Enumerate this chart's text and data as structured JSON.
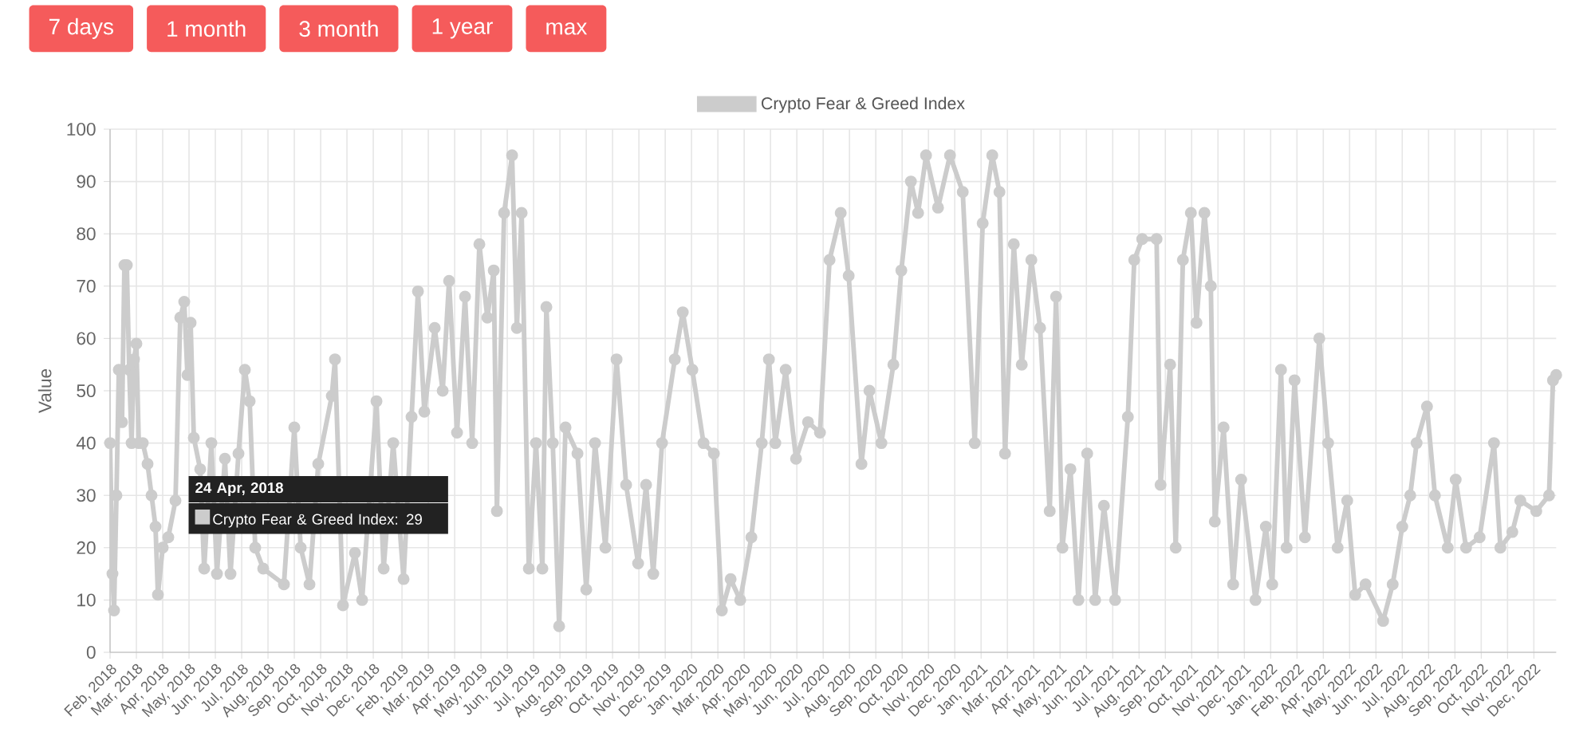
{
  "chart_data": {
    "type": "line",
    "ylabel": "Value",
    "annotations": [
      "7 days",
      "1 month",
      "3 month",
      "1 year",
      "max",
      {
        "text": "24 Apr, 2018",
        "x": "2018-04-24",
        "y": 29
      },
      {
        "text": "Crypto Fear & Greed Index: 29",
        "x": "2018-04-24",
        "y": 29
      }
    ],
    "x": [
      "2018-02-01",
      "2018-02-04",
      "2018-02-06",
      "2018-02-09",
      "2018-02-12",
      "2018-02-16",
      "2018-02-19",
      "2018-02-22",
      "2018-02-25",
      "2018-02-28",
      "2018-03-03",
      "2018-03-06",
      "2018-03-09",
      "2018-03-14",
      "2018-03-20",
      "2018-03-25",
      "2018-03-30",
      "2018-04-02",
      "2018-04-08",
      "2018-04-15",
      "2018-04-24",
      "2018-04-30",
      "2018-05-05",
      "2018-05-09",
      "2018-05-13",
      "2018-05-17",
      "2018-05-25",
      "2018-05-30",
      "2018-06-08",
      "2018-06-15",
      "2018-06-25",
      "2018-07-02",
      "2018-07-12",
      "2018-07-20",
      "2018-07-26",
      "2018-08-02",
      "2018-08-12",
      "2018-08-25",
      "2018-09-07",
      "2018-09-20",
      "2018-09-28",
      "2018-10-09",
      "2018-10-20",
      "2018-11-06",
      "2018-11-10",
      "2018-11-20",
      "2018-12-05",
      "2018-12-14",
      "2018-12-22",
      "2019-01-01",
      "2019-01-10",
      "2019-01-22",
      "2019-02-04",
      "2019-02-14",
      "2019-02-22",
      "2019-03-02",
      "2019-03-15",
      "2019-03-25",
      "2019-04-02",
      "2019-04-12",
      "2019-04-22",
      "2019-05-01",
      "2019-05-10",
      "2019-05-20",
      "2019-05-28",
      "2019-06-01",
      "2019-06-10",
      "2019-06-20",
      "2019-06-26",
      "2019-07-02",
      "2019-07-11",
      "2019-07-20",
      "2019-07-28",
      "2019-08-02",
      "2019-08-10",
      "2019-08-18",
      "2019-08-26",
      "2019-09-10",
      "2019-09-21",
      "2019-10-02",
      "2019-10-15",
      "2019-10-29",
      "2019-11-10",
      "2019-11-25",
      "2019-12-05",
      "2019-12-14",
      "2019-12-25",
      "2020-01-10",
      "2020-01-20",
      "2020-02-01",
      "2020-02-15",
      "2020-02-28",
      "2020-03-09",
      "2020-03-20",
      "2020-04-01",
      "2020-04-15",
      "2020-04-28",
      "2020-05-07",
      "2020-05-15",
      "2020-05-28",
      "2020-06-10",
      "2020-06-25",
      "2020-07-10",
      "2020-07-22",
      "2020-08-05",
      "2020-08-15",
      "2020-08-31",
      "2020-09-10",
      "2020-09-25",
      "2020-10-10",
      "2020-10-20",
      "2020-11-01",
      "2020-11-10",
      "2020-11-20",
      "2020-12-05",
      "2020-12-20",
      "2021-01-05",
      "2021-01-20",
      "2021-01-30",
      "2021-02-11",
      "2021-02-20",
      "2021-02-27",
      "2021-03-10",
      "2021-03-20",
      "2021-04-01",
      "2021-04-12",
      "2021-04-24",
      "2021-05-02",
      "2021-05-10",
      "2021-05-20",
      "2021-05-30",
      "2021-06-10",
      "2021-06-20",
      "2021-07-01",
      "2021-07-15",
      "2021-07-31",
      "2021-08-08",
      "2021-08-18",
      "2021-09-05",
      "2021-09-10",
      "2021-09-22",
      "2021-09-29",
      "2021-10-08",
      "2021-10-18",
      "2021-10-25",
      "2021-11-04",
      "2021-11-12",
      "2021-11-17",
      "2021-11-28",
      "2021-12-10",
      "2021-12-20",
      "2022-01-07",
      "2022-01-20",
      "2022-01-28",
      "2022-02-08",
      "2022-02-15",
      "2022-02-25",
      "2022-03-10",
      "2022-03-28",
      "2022-04-08",
      "2022-04-20",
      "2022-05-02",
      "2022-05-12",
      "2022-05-25",
      "2022-06-16",
      "2022-06-28",
      "2022-07-10",
      "2022-07-20",
      "2022-07-28",
      "2022-08-10",
      "2022-08-20",
      "2022-09-05",
      "2022-09-15",
      "2022-09-28",
      "2022-10-15",
      "2022-11-02",
      "2022-11-10",
      "2022-11-25",
      "2022-12-05",
      "2022-12-25",
      "2023-01-10",
      "2023-01-15",
      "2023-01-19"
    ],
    "series": [
      {
        "name": "Crypto Fear & Greed Index",
        "color": "#cccccc",
        "values": [
          40,
          15,
          8,
          30,
          54,
          44,
          74,
          74,
          54,
          40,
          56,
          59,
          40,
          40,
          36,
          30,
          24,
          11,
          20,
          22,
          29,
          64,
          67,
          53,
          63,
          41,
          35,
          16,
          40,
          15,
          37,
          15,
          38,
          54,
          48,
          20,
          16,
          null,
          13,
          43,
          20,
          13,
          36,
          49,
          56,
          9,
          19,
          10,
          null,
          48,
          16,
          40,
          14,
          45,
          69,
          46,
          62,
          50,
          71,
          42,
          68,
          40,
          78,
          64,
          73,
          27,
          84,
          95,
          62,
          84,
          16,
          40,
          16,
          66,
          40,
          5,
          43,
          38,
          12,
          40,
          20,
          56,
          32,
          17,
          32,
          15,
          40,
          56,
          65,
          54,
          40,
          38,
          8,
          14,
          10,
          22,
          40,
          56,
          40,
          54,
          37,
          44,
          42,
          75,
          84,
          72,
          36,
          50,
          40,
          55,
          73,
          90,
          84,
          95,
          85,
          95,
          88,
          40,
          82,
          95,
          88,
          38,
          78,
          55,
          75,
          62,
          27,
          68,
          20,
          35,
          10,
          38,
          10,
          28,
          10,
          45,
          75,
          79,
          79,
          32,
          55,
          20,
          75,
          84,
          63,
          84,
          70,
          25,
          43,
          13,
          33,
          10,
          24,
          13,
          54,
          20,
          52,
          22,
          60,
          40,
          20,
          29,
          11,
          13,
          6,
          13,
          24,
          30,
          40,
          47,
          30,
          20,
          33,
          20,
          22,
          40,
          20,
          23,
          29,
          27,
          30,
          52,
          53
        ]
      }
    ],
    "xlim": [
      "2018-02-01",
      "2023-01-19"
    ],
    "xticks": [
      {
        "value": "2018-02-01",
        "label": "Feb, 2018"
      },
      {
        "value": "2018-03-06",
        "label": "Mar, 2018"
      },
      {
        "value": "2018-04-08",
        "label": "Apr, 2018"
      },
      {
        "value": "2018-05-11",
        "label": "May, 2018"
      },
      {
        "value": "2018-06-13",
        "label": "Jun, 2018"
      },
      {
        "value": "2018-07-16",
        "label": "Jul, 2018"
      },
      {
        "value": "2018-08-18",
        "label": "Aug, 2018"
      },
      {
        "value": "2018-09-20",
        "label": "Sep, 2018"
      },
      {
        "value": "2018-10-23",
        "label": "Oct, 2018"
      },
      {
        "value": "2018-11-25",
        "label": "Nov, 2018"
      },
      {
        "value": "2018-12-28",
        "label": "Dec, 2018"
      },
      {
        "value": "2019-02-02",
        "label": "Feb, 2019"
      },
      {
        "value": "2019-03-07",
        "label": "Mar, 2019"
      },
      {
        "value": "2019-04-09",
        "label": "Apr, 2019"
      },
      {
        "value": "2019-05-12",
        "label": "May, 2019"
      },
      {
        "value": "2019-06-14",
        "label": "Jun, 2019"
      },
      {
        "value": "2019-07-17",
        "label": "Jul, 2019"
      },
      {
        "value": "2019-08-19",
        "label": "Aug, 2019"
      },
      {
        "value": "2019-09-21",
        "label": "Sep, 2019"
      },
      {
        "value": "2019-10-24",
        "label": "Oct, 2019"
      },
      {
        "value": "2019-11-26",
        "label": "Nov, 2019"
      },
      {
        "value": "2019-12-29",
        "label": "Dec, 2019"
      },
      {
        "value": "2020-01-31",
        "label": "Jan, 2020"
      },
      {
        "value": "2020-03-04",
        "label": "Mar, 2020"
      },
      {
        "value": "2020-04-06",
        "label": "Apr, 2020"
      },
      {
        "value": "2020-05-09",
        "label": "May, 2020"
      },
      {
        "value": "2020-06-11",
        "label": "Jun, 2020"
      },
      {
        "value": "2020-07-14",
        "label": "Jul, 2020"
      },
      {
        "value": "2020-08-16",
        "label": "Aug, 2020"
      },
      {
        "value": "2020-09-18",
        "label": "Sep, 2020"
      },
      {
        "value": "2020-10-21",
        "label": "Oct, 2020"
      },
      {
        "value": "2020-11-23",
        "label": "Nov, 2020"
      },
      {
        "value": "2020-12-26",
        "label": "Dec, 2020"
      },
      {
        "value": "2021-01-28",
        "label": "Jan, 2021"
      },
      {
        "value": "2021-03-02",
        "label": "Mar, 2021"
      },
      {
        "value": "2021-04-04",
        "label": "Apr, 2021"
      },
      {
        "value": "2021-05-07",
        "label": "May, 2021"
      },
      {
        "value": "2021-06-09",
        "label": "Jun, 2021"
      },
      {
        "value": "2021-07-12",
        "label": "Jul, 2021"
      },
      {
        "value": "2021-08-14",
        "label": "Aug, 2021"
      },
      {
        "value": "2021-09-16",
        "label": "Sep, 2021"
      },
      {
        "value": "2021-10-19",
        "label": "Oct, 2021"
      },
      {
        "value": "2021-11-21",
        "label": "Nov, 2021"
      },
      {
        "value": "2021-12-24",
        "label": "Dec, 2021"
      },
      {
        "value": "2022-01-26",
        "label": "Jan, 2022"
      },
      {
        "value": "2022-02-28",
        "label": "Feb, 2022"
      },
      {
        "value": "2022-04-02",
        "label": "Apr, 2022"
      },
      {
        "value": "2022-05-05",
        "label": "May, 2022"
      },
      {
        "value": "2022-06-07",
        "label": "Jun, 2022"
      },
      {
        "value": "2022-07-10",
        "label": "Jul, 2022"
      },
      {
        "value": "2022-08-12",
        "label": "Aug, 2022"
      },
      {
        "value": "2022-09-14",
        "label": "Sep, 2022"
      },
      {
        "value": "2022-10-17",
        "label": "Oct, 2022"
      },
      {
        "value": "2022-11-19",
        "label": "Nov, 2022"
      },
      {
        "value": "2022-12-22",
        "label": "Dec, 2022"
      }
    ],
    "ylim": [
      0,
      100
    ],
    "yticks": [
      0,
      10,
      20,
      30,
      40,
      50,
      60,
      70,
      80,
      90,
      100
    ],
    "grid": true,
    "legend": "top",
    "marker": "circle"
  }
}
